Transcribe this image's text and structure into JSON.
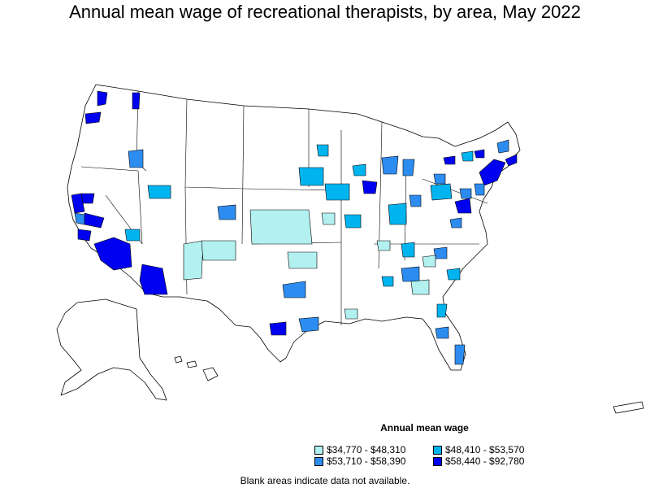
{
  "title": "Annual mean wage of recreational therapists, by area, May 2022",
  "legend": {
    "title": "Annual mean wage",
    "bins": [
      {
        "label": "$34,770 - $48,310",
        "color": "#b3f0f0"
      },
      {
        "label": "$48,410 - $53,570",
        "color": "#00b4f0"
      },
      {
        "label": "$53,710 - $58,390",
        "color": "#2d8cf0"
      },
      {
        "label": "$58,440 - $92,780",
        "color": "#0000f0"
      }
    ]
  },
  "footnote": "Blank areas indicate data not available.",
  "colors": {
    "outline": "#000000",
    "no_data": "#ffffff"
  }
}
